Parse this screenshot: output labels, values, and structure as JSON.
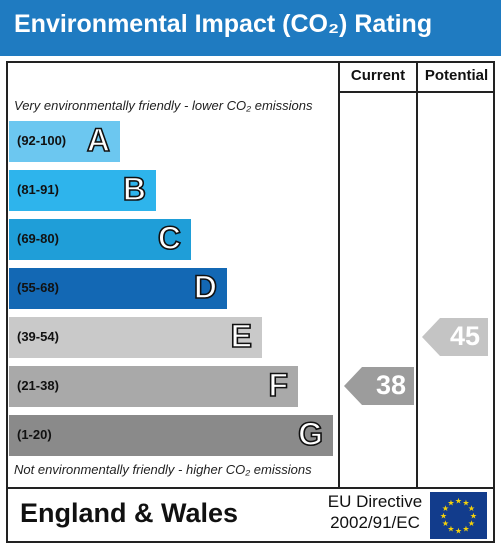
{
  "title": "Environmental Impact (CO₂) Rating",
  "columns": {
    "current": "Current",
    "potential": "Potential"
  },
  "top_note": "Very environmentally friendly - lower CO₂ emissions",
  "bottom_note": "Not environmentally friendly - higher CO₂ emissions",
  "bands": [
    {
      "range": "(92-100)",
      "letter": "A",
      "color": "#6cc7f0"
    },
    {
      "range": "(81-91)",
      "letter": "B",
      "color": "#2eb4ec"
    },
    {
      "range": "(69-80)",
      "letter": "C",
      "color": "#1f9ed8"
    },
    {
      "range": "(55-68)",
      "letter": "D",
      "color": "#1368b4"
    },
    {
      "range": "(39-54)",
      "letter": "E",
      "color": "#c9c9c9"
    },
    {
      "range": "(21-38)",
      "letter": "F",
      "color": "#a9a9a9"
    },
    {
      "range": "(1-20)",
      "letter": "G",
      "color": "#8a8a8a"
    }
  ],
  "current_rating": {
    "value": "38",
    "band": "F",
    "color": "#9c9c9c"
  },
  "potential_rating": {
    "value": "45",
    "band": "E",
    "color": "#c4c4c4"
  },
  "footer": {
    "region": "England & Wales",
    "directive_line1": "EU Directive",
    "directive_line2": "2002/91/EC"
  },
  "colors": {
    "header": "#1f7bc1",
    "eu_flag": "#123c8c",
    "eu_stars": "#f5d20a"
  }
}
